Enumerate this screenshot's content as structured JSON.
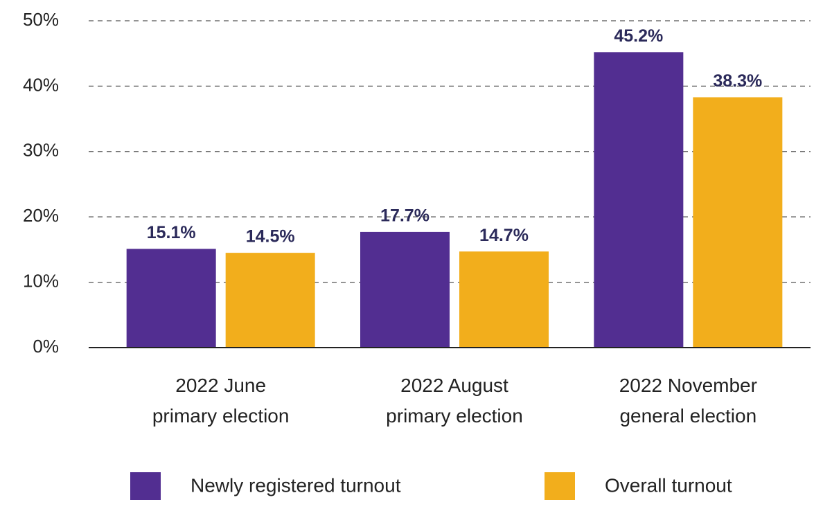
{
  "chart_data": {
    "type": "bar",
    "categories": [
      "2022 June\nprimary election",
      "2022 August\nprimary election",
      "2022 November\ngeneral election"
    ],
    "series": [
      {
        "name": "Newly registered turnout",
        "color": "#522e91",
        "values": [
          15.1,
          17.7,
          45.2
        ],
        "value_labels": [
          "15.1%",
          "17.7%",
          "45.2%"
        ]
      },
      {
        "name": "Overall turnout",
        "color": "#f2ae1c",
        "values": [
          14.5,
          14.7,
          38.3
        ],
        "value_labels": [
          "14.5%",
          "14.7%",
          "38.3%"
        ]
      }
    ],
    "ylim": [
      0,
      50
    ],
    "yticks": [
      {
        "value": 0,
        "label": "0%"
      },
      {
        "value": 10,
        "label": "10%"
      },
      {
        "value": 20,
        "label": "20%"
      },
      {
        "value": 30,
        "label": "30%"
      },
      {
        "value": 40,
        "label": "40%"
      },
      {
        "value": 50,
        "label": "50%"
      }
    ],
    "grid": true,
    "legend": "bottom"
  }
}
